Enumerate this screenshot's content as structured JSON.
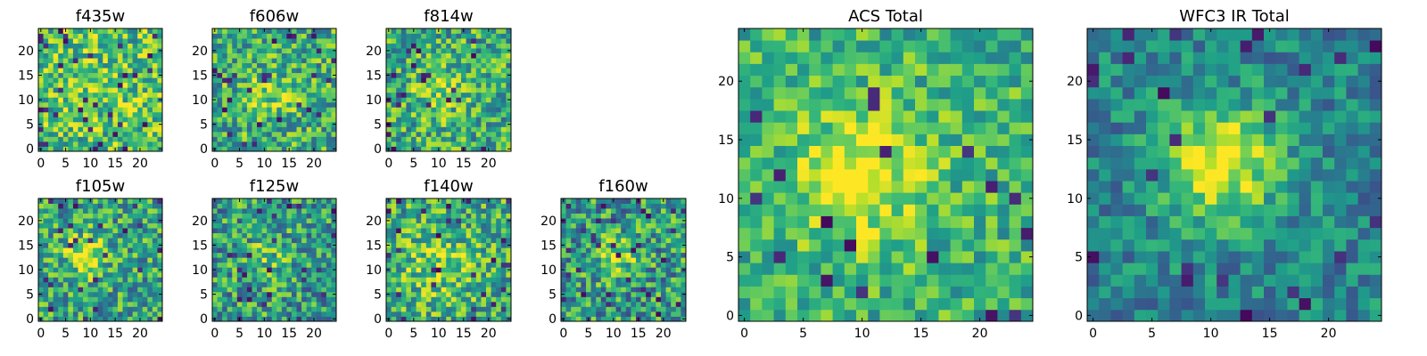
{
  "chart_data": [
    {
      "type": "heatmap",
      "title": "f435w",
      "grid_size": 25,
      "xticks": [
        0,
        5,
        10,
        15,
        20
      ],
      "yticks": [
        0,
        5,
        10,
        15,
        20
      ],
      "xlim": [
        0,
        24
      ],
      "ylim": [
        0,
        24
      ],
      "colormap": "viridis",
      "pattern": "mostly uniform noise"
    },
    {
      "type": "heatmap",
      "title": "f606w",
      "grid_size": 25,
      "xticks": [
        0,
        5,
        10,
        15,
        20
      ],
      "yticks": [
        0,
        5,
        10,
        15,
        20
      ],
      "xlim": [
        0,
        24
      ],
      "ylim": [
        0,
        24
      ],
      "colormap": "viridis",
      "pattern": "faint central source near (11, 11)"
    },
    {
      "type": "heatmap",
      "title": "f814w",
      "grid_size": 25,
      "xticks": [
        0,
        5,
        10,
        15,
        20
      ],
      "yticks": [
        0,
        5,
        10,
        15,
        20
      ],
      "xlim": [
        0,
        24
      ],
      "ylim": [
        0,
        24
      ],
      "colormap": "viridis",
      "pattern": "faint central source near (10, 12)"
    },
    {
      "type": "heatmap",
      "title": "f105w",
      "grid_size": 25,
      "xticks": [
        0,
        5,
        10,
        15,
        20
      ],
      "yticks": [
        0,
        5,
        10,
        15,
        20
      ],
      "xlim": [
        0,
        24
      ],
      "ylim": [
        0,
        24
      ],
      "colormap": "viridis",
      "pattern": "bright source near (9, 13)"
    },
    {
      "type": "heatmap",
      "title": "f125w",
      "grid_size": 25,
      "xticks": [
        0,
        5,
        10,
        15,
        20
      ],
      "yticks": [
        0,
        5,
        10,
        15,
        20
      ],
      "xlim": [
        0,
        24
      ],
      "ylim": [
        0,
        24
      ],
      "colormap": "viridis",
      "pattern": "weak source near (11, 12)"
    },
    {
      "type": "heatmap",
      "title": "f140w",
      "grid_size": 25,
      "xticks": [
        0,
        5,
        10,
        15,
        20
      ],
      "yticks": [
        0,
        5,
        10,
        15,
        20
      ],
      "xlim": [
        0,
        24
      ],
      "ylim": [
        0,
        24
      ],
      "colormap": "viridis",
      "pattern": "extended emission near (10, 11)"
    },
    {
      "type": "heatmap",
      "title": "f160w",
      "grid_size": 25,
      "xticks": [
        0,
        5,
        10,
        15,
        20
      ],
      "yticks": [
        0,
        5,
        10,
        15,
        20
      ],
      "xlim": [
        0,
        24
      ],
      "ylim": [
        0,
        24
      ],
      "colormap": "viridis",
      "pattern": "source near (11, 13)"
    },
    {
      "type": "heatmap",
      "title": "ACS Total",
      "grid_size": 25,
      "xticks": [
        0,
        5,
        10,
        15,
        20
      ],
      "yticks": [
        0,
        5,
        10,
        15,
        20
      ],
      "xlim": [
        0,
        24
      ],
      "ylim": [
        0,
        24
      ],
      "colormap": "viridis",
      "pattern": "bright blob near (10, 12)"
    },
    {
      "type": "heatmap",
      "title": "WFC3 IR Total",
      "grid_size": 25,
      "xticks": [
        0,
        5,
        10,
        15,
        20
      ],
      "yticks": [
        0,
        5,
        10,
        15,
        20
      ],
      "xlim": [
        0,
        24
      ],
      "ylim": [
        0,
        24
      ],
      "colormap": "viridis",
      "pattern": "bright blob near (11, 13)"
    }
  ]
}
